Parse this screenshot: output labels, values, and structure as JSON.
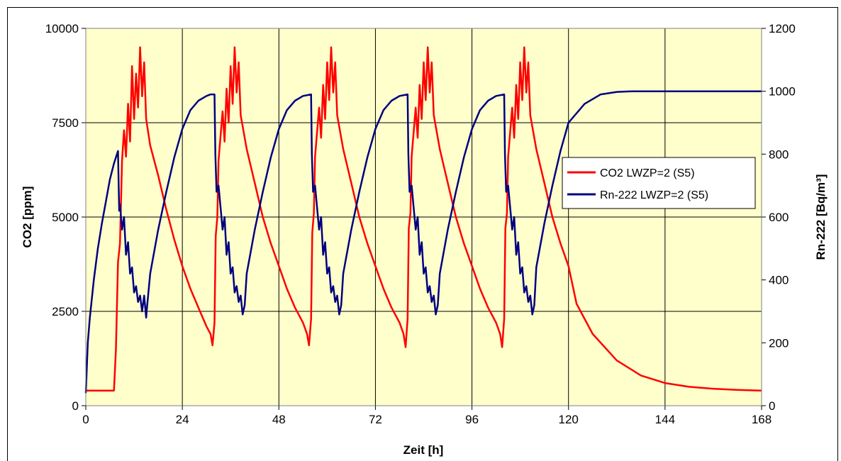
{
  "chart_data": {
    "type": "line",
    "xlabel": "Zeit [h]",
    "ylabel_left": "CO2 [ppm]",
    "ylabel_right": "Rn-222 [Bq/m³]",
    "xlim": [
      0,
      168
    ],
    "ylim_left": [
      0,
      10000
    ],
    "ylim_right": [
      0,
      1200
    ],
    "x_ticks": [
      "0",
      "24",
      "48",
      "72",
      "96",
      "120",
      "144",
      "168"
    ],
    "y_left_ticks": [
      "0",
      "2500",
      "5000",
      "7500",
      "10000"
    ],
    "y_right_ticks": [
      "0",
      "200",
      "400",
      "600",
      "800",
      "1000",
      "1200"
    ],
    "grid": true,
    "background": "#ffffcc",
    "legend_position": "right",
    "series": [
      {
        "name": "CO2 LWZP=2 (S5)",
        "axis": "left",
        "color": "#ff0000",
        "points": [
          [
            0,
            400
          ],
          [
            7,
            400
          ],
          [
            7.5,
            1500
          ],
          [
            8,
            3800
          ],
          [
            8.5,
            4300
          ],
          [
            9,
            6500
          ],
          [
            9.5,
            7300
          ],
          [
            10,
            6600
          ],
          [
            10.5,
            8000
          ],
          [
            11,
            7000
          ],
          [
            11.5,
            9000
          ],
          [
            12,
            7600
          ],
          [
            12.5,
            8800
          ],
          [
            13,
            7900
          ],
          [
            13.5,
            9500
          ],
          [
            14,
            8200
          ],
          [
            14.5,
            9100
          ],
          [
            15,
            7600
          ],
          [
            16,
            6900
          ],
          [
            18,
            6100
          ],
          [
            20,
            5200
          ],
          [
            22,
            4400
          ],
          [
            24,
            3700
          ],
          [
            26,
            3100
          ],
          [
            28,
            2600
          ],
          [
            30,
            2100
          ],
          [
            31,
            1900
          ],
          [
            31.5,
            1600
          ],
          [
            32,
            2200
          ],
          [
            32.3,
            4500
          ],
          [
            32.7,
            5000
          ],
          [
            33,
            6500
          ],
          [
            34,
            7800
          ],
          [
            34.5,
            7000
          ],
          [
            35,
            8400
          ],
          [
            35.5,
            7500
          ],
          [
            36,
            9000
          ],
          [
            36.5,
            8000
          ],
          [
            37,
            9500
          ],
          [
            37.5,
            8300
          ],
          [
            38,
            9100
          ],
          [
            38.5,
            7700
          ],
          [
            40,
            6800
          ],
          [
            42,
            5900
          ],
          [
            44,
            5000
          ],
          [
            46,
            4300
          ],
          [
            48,
            3700
          ],
          [
            50,
            3100
          ],
          [
            52,
            2600
          ],
          [
            54,
            2200
          ],
          [
            55,
            1900
          ],
          [
            55.5,
            1600
          ],
          [
            56,
            2300
          ],
          [
            56.3,
            4600
          ],
          [
            56.7,
            5100
          ],
          [
            57,
            6600
          ],
          [
            58,
            7900
          ],
          [
            58.5,
            7100
          ],
          [
            59,
            8500
          ],
          [
            59.5,
            7600
          ],
          [
            60,
            9100
          ],
          [
            60.5,
            8100
          ],
          [
            61,
            9500
          ],
          [
            61.5,
            8300
          ],
          [
            62,
            9100
          ],
          [
            62.5,
            7700
          ],
          [
            64,
            6800
          ],
          [
            66,
            5900
          ],
          [
            68,
            5000
          ],
          [
            70,
            4300
          ],
          [
            72,
            3700
          ],
          [
            74,
            3100
          ],
          [
            76,
            2600
          ],
          [
            78,
            2200
          ],
          [
            79,
            1900
          ],
          [
            79.5,
            1550
          ],
          [
            80,
            2300
          ],
          [
            80.3,
            4700
          ],
          [
            80.7,
            5100
          ],
          [
            81,
            6600
          ],
          [
            82,
            7900
          ],
          [
            82.5,
            7100
          ],
          [
            83,
            8500
          ],
          [
            83.5,
            7600
          ],
          [
            84,
            9100
          ],
          [
            84.5,
            8100
          ],
          [
            85,
            9500
          ],
          [
            85.5,
            8300
          ],
          [
            86,
            9100
          ],
          [
            86.5,
            7700
          ],
          [
            88,
            6800
          ],
          [
            90,
            5900
          ],
          [
            92,
            5000
          ],
          [
            94,
            4300
          ],
          [
            96,
            3700
          ],
          [
            98,
            3100
          ],
          [
            100,
            2600
          ],
          [
            102,
            2200
          ],
          [
            103,
            1900
          ],
          [
            103.5,
            1550
          ],
          [
            104,
            2300
          ],
          [
            104.3,
            4700
          ],
          [
            104.7,
            5100
          ],
          [
            105,
            6600
          ],
          [
            106,
            7900
          ],
          [
            106.5,
            7100
          ],
          [
            107,
            8500
          ],
          [
            107.5,
            7600
          ],
          [
            108,
            9100
          ],
          [
            108.5,
            8100
          ],
          [
            109,
            9500
          ],
          [
            109.5,
            8300
          ],
          [
            110,
            9100
          ],
          [
            110.5,
            7700
          ],
          [
            112,
            6800
          ],
          [
            114,
            5900
          ],
          [
            116,
            5000
          ],
          [
            118,
            4300
          ],
          [
            120,
            3700
          ],
          [
            122,
            2700
          ],
          [
            126,
            1900
          ],
          [
            132,
            1200
          ],
          [
            138,
            800
          ],
          [
            144,
            600
          ],
          [
            150,
            500
          ],
          [
            156,
            450
          ],
          [
            162,
            420
          ],
          [
            168,
            400
          ]
        ]
      },
      {
        "name": "Rn-222 LWZP=2 (S5)",
        "axis": "right",
        "color": "#000080",
        "points": [
          [
            0,
            40
          ],
          [
            0.5,
            200
          ],
          [
            1,
            280
          ],
          [
            2,
            400
          ],
          [
            3,
            500
          ],
          [
            4,
            580
          ],
          [
            5,
            650
          ],
          [
            6,
            720
          ],
          [
            7,
            770
          ],
          [
            7.5,
            790
          ],
          [
            8,
            810
          ],
          [
            8.3,
            620
          ],
          [
            8.5,
            640
          ],
          [
            9,
            560
          ],
          [
            9.5,
            600
          ],
          [
            10,
            480
          ],
          [
            10.5,
            520
          ],
          [
            11,
            420
          ],
          [
            11.5,
            440
          ],
          [
            12,
            360
          ],
          [
            12.5,
            380
          ],
          [
            13,
            330
          ],
          [
            13.5,
            350
          ],
          [
            14,
            300
          ],
          [
            14.5,
            350
          ],
          [
            15,
            280
          ],
          [
            15.2,
            310
          ],
          [
            16,
            420
          ],
          [
            18,
            560
          ],
          [
            20,
            680
          ],
          [
            22,
            790
          ],
          [
            24,
            880
          ],
          [
            26,
            940
          ],
          [
            28,
            970
          ],
          [
            30,
            985
          ],
          [
            31,
            990
          ],
          [
            32,
            990
          ],
          [
            32.2,
            800
          ],
          [
            32.5,
            680
          ],
          [
            33,
            700
          ],
          [
            34,
            560
          ],
          [
            34.5,
            600
          ],
          [
            35,
            480
          ],
          [
            35.5,
            520
          ],
          [
            36,
            420
          ],
          [
            36.5,
            440
          ],
          [
            37,
            360
          ],
          [
            37.5,
            380
          ],
          [
            38,
            330
          ],
          [
            38.5,
            350
          ],
          [
            39,
            290
          ],
          [
            39.5,
            320
          ],
          [
            40,
            420
          ],
          [
            42,
            560
          ],
          [
            44,
            680
          ],
          [
            46,
            790
          ],
          [
            48,
            880
          ],
          [
            50,
            940
          ],
          [
            52,
            970
          ],
          [
            54,
            985
          ],
          [
            56,
            990
          ],
          [
            56.2,
            800
          ],
          [
            56.5,
            680
          ],
          [
            57,
            700
          ],
          [
            58,
            560
          ],
          [
            58.5,
            600
          ],
          [
            59,
            480
          ],
          [
            59.5,
            520
          ],
          [
            60,
            420
          ],
          [
            60.5,
            440
          ],
          [
            61,
            360
          ],
          [
            61.5,
            380
          ],
          [
            62,
            330
          ],
          [
            62.5,
            350
          ],
          [
            63,
            290
          ],
          [
            63.5,
            320
          ],
          [
            64,
            420
          ],
          [
            66,
            560
          ],
          [
            68,
            680
          ],
          [
            70,
            790
          ],
          [
            72,
            880
          ],
          [
            74,
            940
          ],
          [
            76,
            970
          ],
          [
            78,
            985
          ],
          [
            80,
            990
          ],
          [
            80.2,
            800
          ],
          [
            80.5,
            680
          ],
          [
            81,
            700
          ],
          [
            82,
            560
          ],
          [
            82.5,
            600
          ],
          [
            83,
            480
          ],
          [
            83.5,
            520
          ],
          [
            84,
            420
          ],
          [
            84.5,
            440
          ],
          [
            85,
            360
          ],
          [
            85.5,
            380
          ],
          [
            86,
            330
          ],
          [
            86.5,
            350
          ],
          [
            87,
            290
          ],
          [
            87.5,
            320
          ],
          [
            88,
            420
          ],
          [
            90,
            560
          ],
          [
            92,
            680
          ],
          [
            94,
            790
          ],
          [
            96,
            880
          ],
          [
            98,
            940
          ],
          [
            100,
            970
          ],
          [
            102,
            985
          ],
          [
            104,
            990
          ],
          [
            104.2,
            800
          ],
          [
            104.5,
            680
          ],
          [
            105,
            700
          ],
          [
            106,
            560
          ],
          [
            106.5,
            600
          ],
          [
            107,
            480
          ],
          [
            107.5,
            520
          ],
          [
            108,
            420
          ],
          [
            108.5,
            440
          ],
          [
            109,
            360
          ],
          [
            109.5,
            380
          ],
          [
            110,
            330
          ],
          [
            110.5,
            350
          ],
          [
            111,
            290
          ],
          [
            111.5,
            320
          ],
          [
            112,
            440
          ],
          [
            114,
            580
          ],
          [
            116,
            700
          ],
          [
            118,
            810
          ],
          [
            120,
            900
          ],
          [
            124,
            960
          ],
          [
            128,
            990
          ],
          [
            132,
            998
          ],
          [
            136,
            1000
          ],
          [
            144,
            1000
          ],
          [
            156,
            1000
          ],
          [
            168,
            1000
          ]
        ]
      }
    ]
  }
}
